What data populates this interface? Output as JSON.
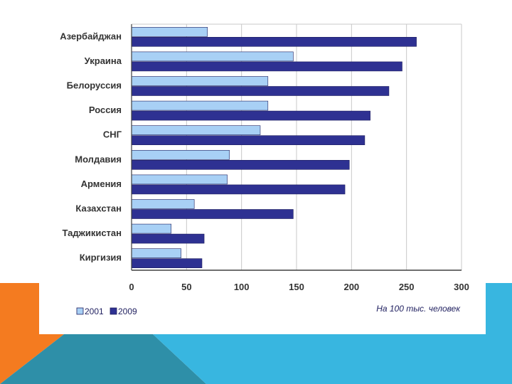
{
  "chart_data": {
    "type": "bar",
    "orientation": "horizontal",
    "title": "",
    "categories": [
      "Азербайджан",
      "Украина",
      "Белоруссия",
      "Россия",
      "СНГ",
      "Молдавия",
      "Армения",
      "Казахстан",
      "Таджикистан",
      "Киргизия"
    ],
    "series": [
      {
        "name": "2001",
        "color": "#a8d0f5",
        "values": [
          69,
          147,
          124,
          124,
          117,
          89,
          87,
          57,
          36,
          45
        ]
      },
      {
        "name": "2009",
        "color": "#2e3192",
        "values": [
          259,
          246,
          234,
          217,
          212,
          198,
          194,
          147,
          66,
          64
        ]
      }
    ],
    "xlim": [
      0,
      300
    ],
    "xticks": [
      "0",
      "50",
      "100",
      "150",
      "200",
      "250",
      "300"
    ],
    "xlabel": "На 100 тыс. человек",
    "ylabel": "",
    "grid": true,
    "legend": "bottom-left"
  },
  "colors": {
    "orange": "#f47b20",
    "light_blue": "#38b6e0",
    "teal": "#2e8fa8",
    "grid": "#c8c8c8",
    "axis": "#404040"
  }
}
